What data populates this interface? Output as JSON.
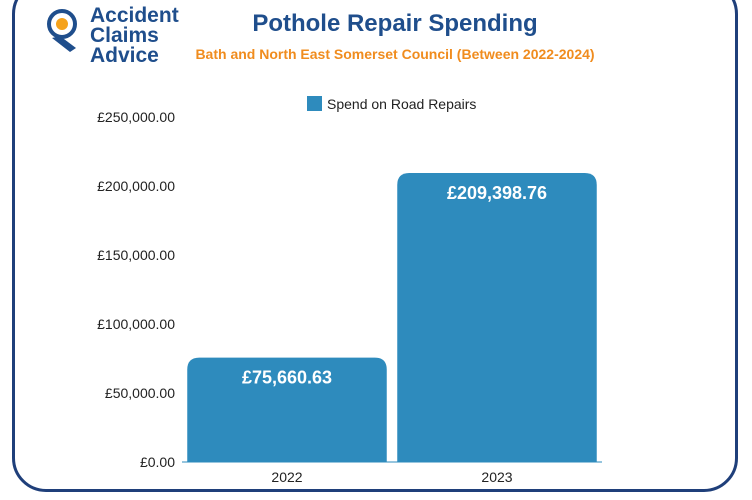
{
  "logo": {
    "lines": [
      "Accident",
      "Claims",
      "Advice"
    ],
    "colors": {
      "text": "#1f4e8c",
      "accent": "#f5a21b"
    }
  },
  "chart_data": {
    "type": "bar",
    "title": "Pothole Repair Spending",
    "subtitle": "Bath and North East Somerset Council (Between 2022-2024)",
    "categories": [
      "2022",
      "2023"
    ],
    "series": [
      {
        "name": "Spend on Road Repairs",
        "values": [
          75660.63,
          209398.76
        ],
        "labels": [
          "£75,660.63",
          "£209,398.76"
        ],
        "color": "#2e8bbd"
      }
    ],
    "yticks": [
      "£0.00",
      "£50,000.00",
      "£100,000.00",
      "£150,000.00",
      "£200,000.00",
      "£250,000.00"
    ],
    "ylim": [
      0,
      250000
    ],
    "grid": false,
    "legend": "top-center"
  },
  "colors": {
    "frame": "#1f3f7a",
    "title": "#1f4e8c",
    "subtitle": "#f08c1e",
    "bar": "#2e8bbd"
  }
}
